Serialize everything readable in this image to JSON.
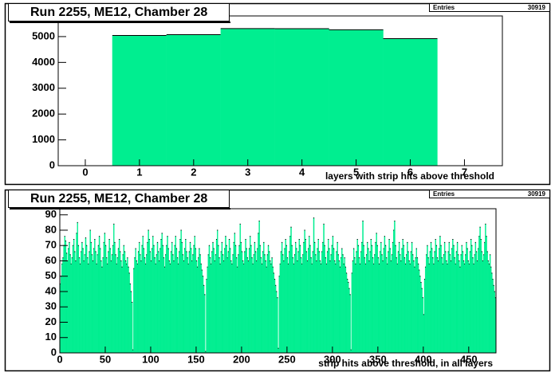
{
  "chart_data": [
    {
      "type": "histogram",
      "title": "Run 2255, ME12, Chamber 28",
      "x_label": "layers with strip hits above threshold",
      "stats": {
        "label": "Entries",
        "value": 30919
      },
      "bins": [
        0.5,
        1.5,
        2.5,
        3.5,
        4.5,
        5.5,
        6.5
      ],
      "values": [
        5045,
        5075,
        5310,
        5305,
        5265,
        4919
      ],
      "color": "#00ee90",
      "xlim": [
        -0.5,
        7.7
      ],
      "ylim": [
        0,
        5800
      ],
      "xticks": [
        0,
        1,
        2,
        3,
        4,
        5,
        6,
        7
      ],
      "yticks": [
        0,
        1000,
        2000,
        3000,
        4000,
        5000
      ]
    },
    {
      "type": "histogram",
      "title": "Run 2255, ME12, Chamber 28",
      "x_label": "strip hits above threshold, in all layers",
      "stats": {
        "label": "Entries",
        "value": 30919
      },
      "bins": [
        0,
        1,
        2,
        3,
        4,
        5,
        6,
        7,
        8,
        9,
        10,
        11,
        12,
        13,
        14,
        15,
        16,
        17,
        18,
        19,
        20,
        21,
        22,
        23,
        24,
        25,
        26,
        27,
        28,
        29,
        30,
        31,
        32,
        33,
        34,
        35,
        36,
        37,
        38,
        39,
        40,
        41,
        42,
        43,
        44,
        45,
        46,
        47,
        48,
        49,
        50,
        51,
        52,
        53,
        54,
        55,
        56,
        57,
        58,
        59,
        60,
        61,
        62,
        63,
        64,
        65,
        66,
        67,
        68,
        69,
        70,
        71,
        72,
        73,
        74,
        75,
        76,
        77,
        78,
        79,
        80,
        81,
        82,
        83,
        84,
        85,
        86,
        87,
        88,
        89,
        90,
        91,
        92,
        93,
        94,
        95,
        96,
        97,
        98,
        99,
        100,
        101,
        102,
        103,
        104,
        105,
        106,
        107,
        108,
        109,
        110,
        111,
        112,
        113,
        114,
        115,
        116,
        117,
        118,
        119,
        120,
        121,
        122,
        123,
        124,
        125,
        126,
        127,
        128,
        129,
        130,
        131,
        132,
        133,
        134,
        135,
        136,
        137,
        138,
        139,
        140,
        141,
        142,
        143,
        144,
        145,
        146,
        147,
        148,
        149,
        150,
        151,
        152,
        153,
        154,
        155,
        156,
        157,
        158,
        159,
        160,
        161,
        162,
        163,
        164,
        165,
        166,
        167,
        168,
        169,
        170,
        171,
        172,
        173,
        174,
        175,
        176,
        177,
        178,
        179,
        180,
        181,
        182,
        183,
        184,
        185,
        186,
        187,
        188,
        189,
        190,
        191,
        192,
        193,
        194,
        195,
        196,
        197,
        198,
        199,
        200,
        201,
        202,
        203,
        204,
        205,
        206,
        207,
        208,
        209,
        210,
        211,
        212,
        213,
        214,
        215,
        216,
        217,
        218,
        219,
        220,
        221,
        222,
        223,
        224,
        225,
        226,
        227,
        228,
        229,
        230,
        231,
        232,
        233,
        234,
        235,
        236,
        237,
        238,
        239,
        240,
        241,
        242,
        243,
        244,
        245,
        246,
        247,
        248,
        249,
        250,
        251,
        252,
        253,
        254,
        255,
        256,
        257,
        258,
        259,
        260,
        261,
        262,
        263,
        264,
        265,
        266,
        267,
        268,
        269,
        270,
        271,
        272,
        273,
        274,
        275,
        276,
        277,
        278,
        279,
        280,
        281,
        282,
        283,
        284,
        285,
        286,
        287,
        288,
        289,
        290,
        291,
        292,
        293,
        294,
        295,
        296,
        297,
        298,
        299,
        300,
        301,
        302,
        303,
        304,
        305,
        306,
        307,
        308,
        309,
        310,
        311,
        312,
        313,
        314,
        315,
        316,
        317,
        318,
        319,
        320,
        321,
        322,
        323,
        324,
        325,
        326,
        327,
        328,
        329,
        330,
        331,
        332,
        333,
        334,
        335,
        336,
        337,
        338,
        339,
        340,
        341,
        342,
        343,
        344,
        345,
        346,
        347,
        348,
        349,
        350,
        351,
        352,
        353,
        354,
        355,
        356,
        357,
        358,
        359,
        360,
        361,
        362,
        363,
        364,
        365,
        366,
        367,
        368,
        369,
        370,
        371,
        372,
        373,
        374,
        375,
        376,
        377,
        378,
        379,
        380,
        381,
        382,
        383,
        384,
        385,
        386,
        387,
        388,
        389,
        390,
        391,
        392,
        393,
        394,
        395,
        396,
        397,
        398,
        399,
        400,
        401,
        402,
        403,
        404,
        405,
        406,
        407,
        408,
        409,
        410,
        411,
        412,
        413,
        414,
        415,
        416,
        417,
        418,
        419,
        420,
        421,
        422,
        423,
        424,
        425,
        426,
        427,
        428,
        429,
        430,
        431,
        432,
        433,
        434,
        435,
        436,
        437,
        438,
        439,
        440,
        441,
        442,
        443,
        444,
        445,
        446,
        447,
        448,
        449,
        450,
        451,
        452,
        453,
        454,
        455,
        456,
        457,
        458,
        459,
        460,
        461,
        462,
        463,
        464,
        465,
        466,
        467,
        468,
        469,
        470,
        471,
        472,
        473,
        474,
        475,
        476,
        477,
        478,
        479,
        480
      ],
      "values": [
        45,
        50,
        58,
        62,
        70,
        76,
        73,
        65,
        60,
        68,
        72,
        64,
        58,
        62,
        70,
        74,
        66,
        60,
        78,
        85,
        70,
        62,
        58,
        66,
        72,
        68,
        60,
        64,
        75,
        70,
        62,
        58,
        66,
        80,
        72,
        64,
        60,
        68,
        74,
        66,
        58,
        64,
        70,
        76,
        68,
        60,
        56,
        62,
        72,
        78,
        70,
        62,
        58,
        66,
        74,
        68,
        60,
        64,
        70,
        84,
        72,
        64,
        58,
        62,
        68,
        74,
        66,
        60,
        56,
        64,
        70,
        66,
        60,
        58,
        62,
        56,
        52,
        45,
        40,
        33,
        2,
        55,
        62,
        68,
        60,
        58,
        66,
        72,
        64,
        60,
        70,
        76,
        68,
        62,
        58,
        64,
        72,
        80,
        74,
        66,
        60,
        68,
        76,
        70,
        62,
        58,
        64,
        72,
        66,
        60,
        68,
        74,
        78,
        70,
        62,
        56,
        64,
        70,
        76,
        68,
        60,
        58,
        66,
        72,
        64,
        60,
        70,
        76,
        68,
        62,
        58,
        66,
        74,
        80,
        72,
        64,
        60,
        68,
        74,
        66,
        62,
        58,
        66,
        72,
        68,
        60,
        64,
        70,
        76,
        68,
        60,
        56,
        62,
        68,
        64,
        58,
        54,
        50,
        44,
        38,
        1,
        48,
        56,
        64,
        70,
        62,
        58,
        66,
        72,
        68,
        60,
        64,
        74,
        80,
        70,
        62,
        58,
        66,
        72,
        64,
        60,
        68,
        76,
        70,
        62,
        66,
        74,
        68,
        60,
        58,
        64,
        72,
        78,
        70,
        62,
        56,
        64,
        70,
        84,
        72,
        66,
        60,
        58,
        66,
        74,
        68,
        62,
        60,
        68,
        76,
        70,
        62,
        58,
        64,
        72,
        66,
        60,
        68,
        78,
        86,
        70,
        62,
        58,
        66,
        72,
        64,
        60,
        56,
        64,
        70,
        66,
        60,
        58,
        62,
        56,
        52,
        48,
        44,
        40,
        36,
        3,
        50,
        58,
        66,
        72,
        64,
        60,
        68,
        74,
        70,
        62,
        58,
        66,
        76,
        82,
        70,
        62,
        58,
        64,
        72,
        68,
        60,
        66,
        74,
        70,
        62,
        58,
        64,
        72,
        80,
        74,
        66,
        60,
        68,
        76,
        70,
        62,
        58,
        66,
        88,
        72,
        64,
        60,
        68,
        74,
        66,
        60,
        58,
        66,
        72,
        84,
        70,
        62,
        58,
        66,
        74,
        68,
        60,
        64,
        70,
        76,
        68,
        60,
        58,
        66,
        72,
        64,
        60,
        56,
        62,
        68,
        64,
        58,
        62,
        56,
        52,
        48,
        46,
        42,
        38,
        2,
        52,
        60,
        68,
        62,
        58,
        66,
        74,
        70,
        62,
        58,
        66,
        72,
        86,
        70,
        62,
        58,
        64,
        72,
        68,
        60,
        66,
        74,
        70,
        62,
        58,
        64,
        72,
        78,
        70,
        62,
        58,
        66,
        72,
        64,
        60,
        68,
        76,
        70,
        62,
        58,
        66,
        74,
        68,
        60,
        64,
        72,
        80,
        86,
        70,
        62,
        58,
        66,
        72,
        64,
        60,
        68,
        74,
        70,
        62,
        58,
        64,
        72,
        66,
        60,
        58,
        66,
        72,
        64,
        60,
        56,
        62,
        68,
        62,
        58,
        54,
        50,
        46,
        42,
        36,
        25,
        48,
        56,
        64,
        70,
        62,
        58,
        66,
        72,
        68,
        62,
        58,
        66,
        74,
        70,
        62,
        60,
        68,
        76,
        70,
        62,
        58,
        64,
        72,
        66,
        60,
        58,
        66,
        72,
        64,
        60,
        68,
        74,
        70,
        62,
        58,
        66,
        72,
        64,
        60,
        56,
        64,
        70,
        66,
        60,
        58,
        64,
        72,
        68,
        60,
        58,
        66,
        74,
        70,
        62,
        58,
        64,
        72,
        66,
        60,
        68,
        76,
        82,
        74,
        66,
        60,
        64,
        72,
        84,
        76,
        66,
        60,
        58,
        64,
        56,
        52,
        48,
        44,
        40,
        36
      ],
      "color": "#00ee90",
      "xlim": [
        0,
        480
      ],
      "ylim": [
        0,
        94
      ],
      "xticks": [
        0,
        50,
        100,
        150,
        200,
        250,
        300,
        350,
        400,
        450
      ],
      "yticks": [
        0,
        10,
        20,
        30,
        40,
        50,
        60,
        70,
        80,
        90
      ]
    }
  ]
}
